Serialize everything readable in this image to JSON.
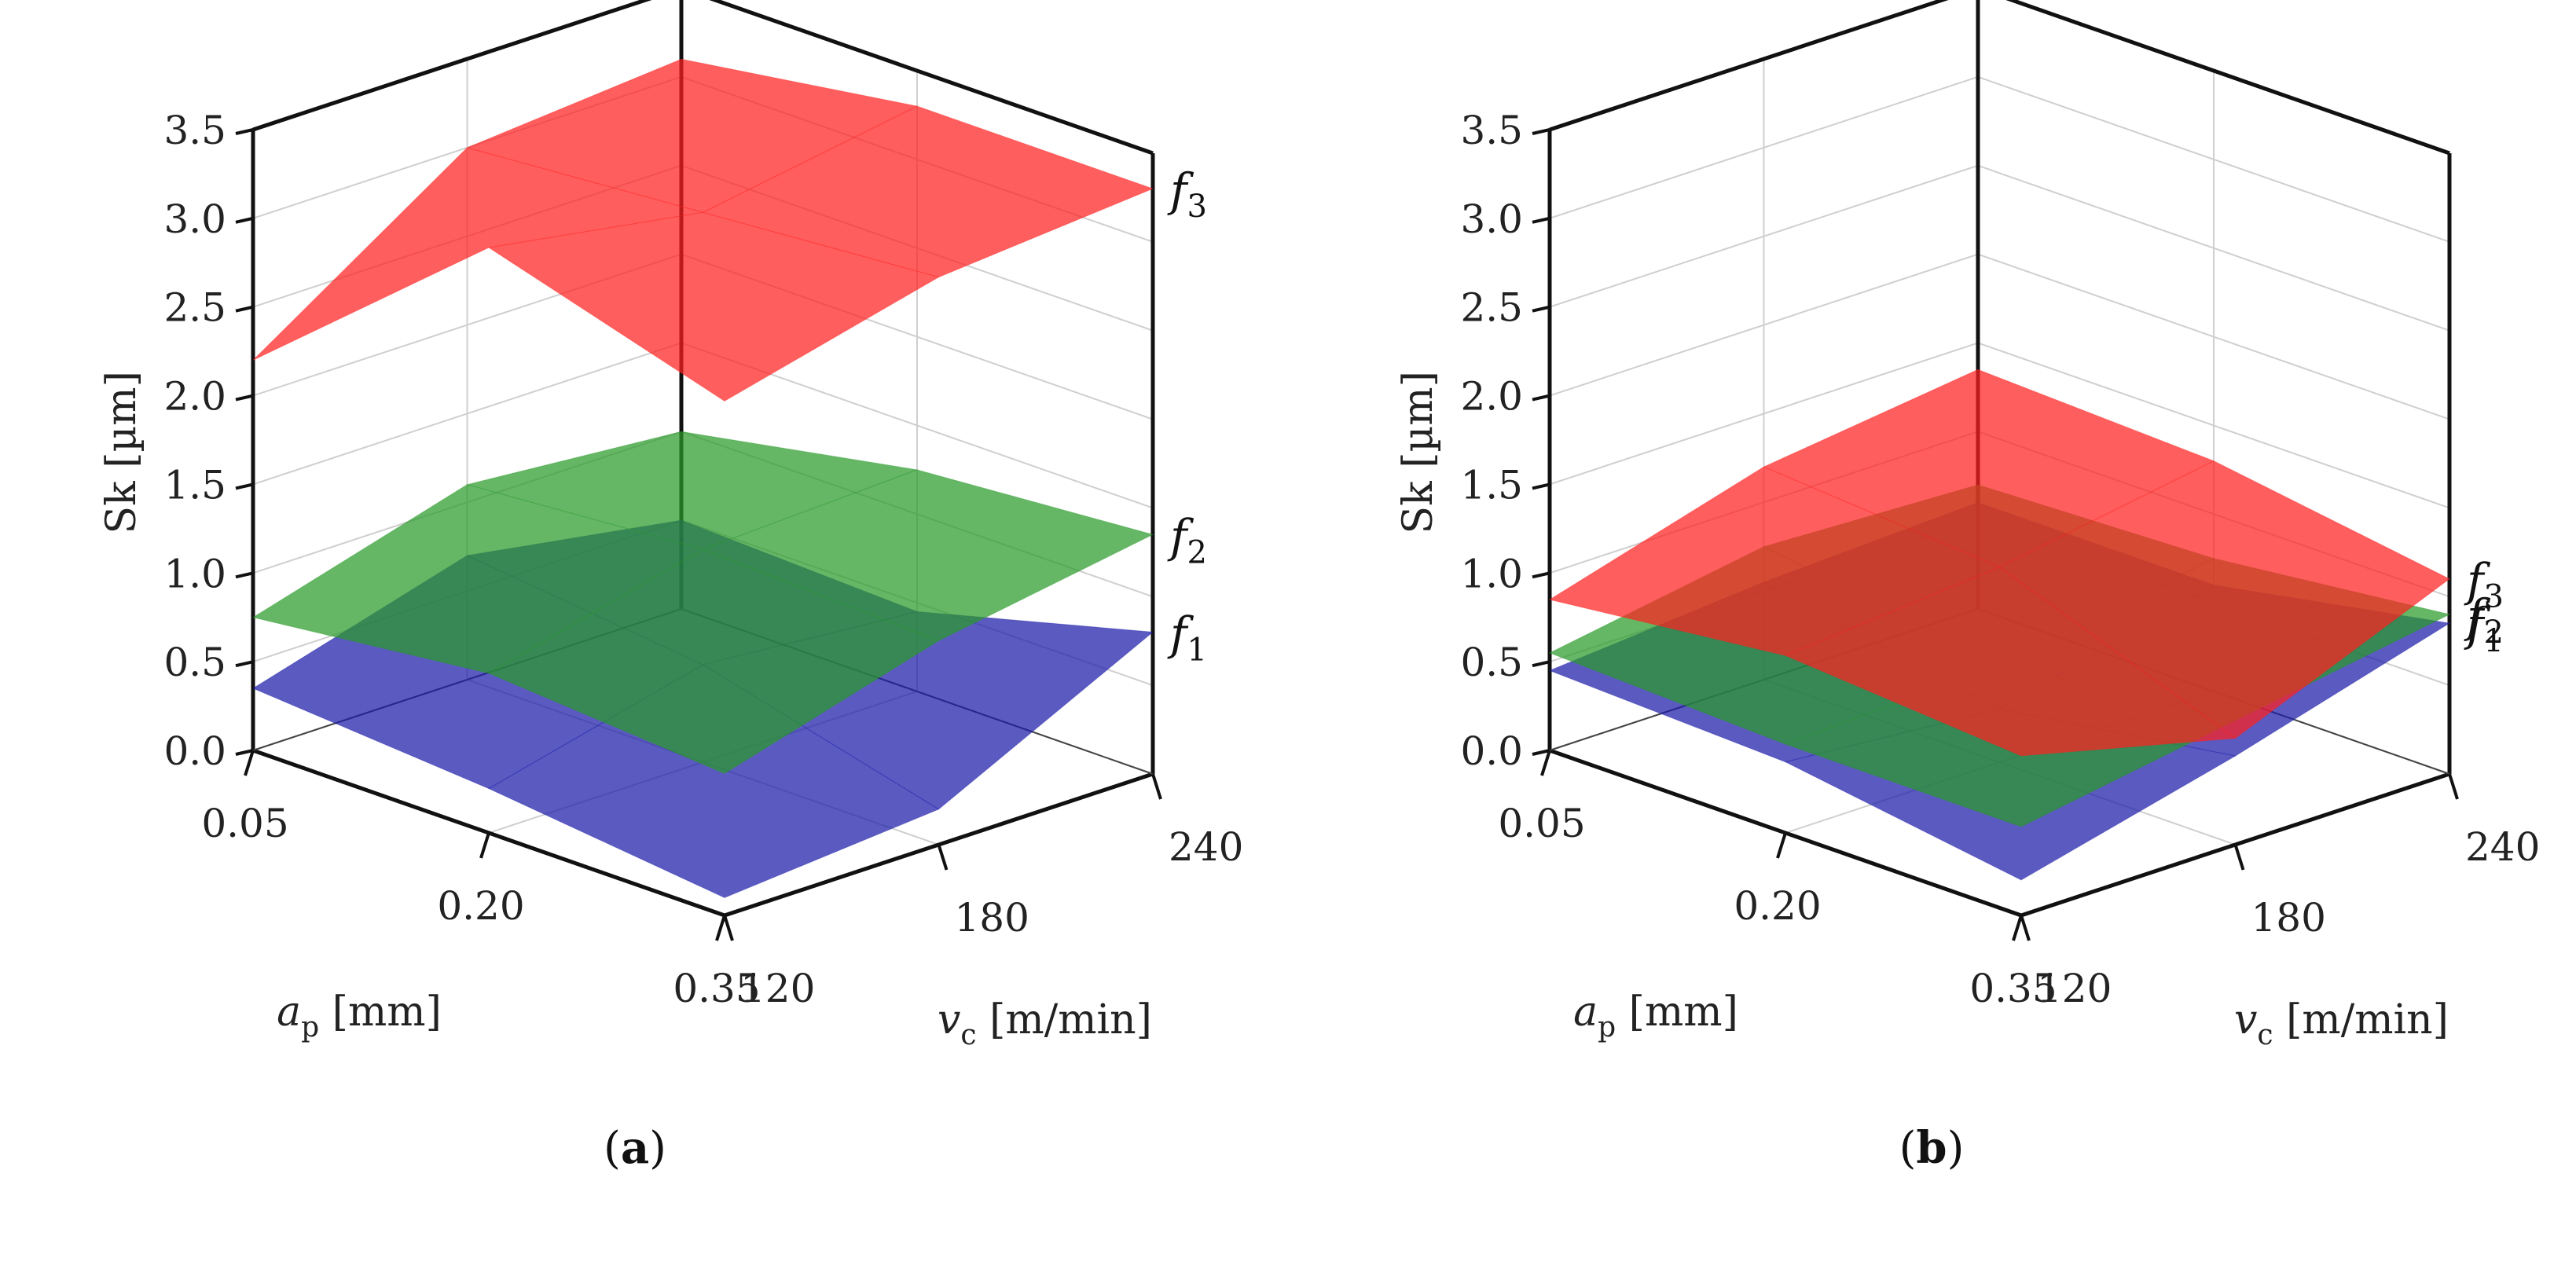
{
  "chart_data": [
    {
      "type": "surface3d",
      "panel_label": "a",
      "zlabel": "Sk [µm]",
      "zlim": [
        0,
        3.5
      ],
      "z_ticks": [
        "0.0",
        "0.5",
        "1.0",
        "1.5",
        "2.0",
        "2.5",
        "3.0",
        "3.5"
      ],
      "x": {
        "label": "a",
        "label_sub": "p",
        "unit": "[mm]",
        "values": [
          0.05,
          0.2,
          0.35
        ],
        "tick_labels": [
          "0.05",
          "0.20",
          "0.35"
        ]
      },
      "y": {
        "label": "v",
        "label_sub": "c",
        "unit": "[m/min]",
        "values": [
          120,
          180,
          240
        ],
        "tick_labels": [
          "120",
          "180",
          "240"
        ]
      },
      "series": [
        {
          "name": "f",
          "sub": "1",
          "color": "#1a1aa8",
          "z": [
            [
              0.35,
              0.7,
              0.5
            ],
            [
              0.25,
              0.55,
              0.45
            ],
            [
              0.1,
              0.2,
              0.8
            ]
          ]
        },
        {
          "name": "f",
          "sub": "2",
          "color": "#2a9a2a",
          "z": [
            [
              0.75,
              1.1,
              1.0
            ],
            [
              0.9,
              1.2,
              1.25
            ],
            [
              0.8,
              1.15,
              1.35
            ]
          ]
        },
        {
          "name": "f",
          "sub": "3",
          "color": "#ff2020",
          "z": [
            [
              2.2,
              3.0,
              3.1
            ],
            [
              3.3,
              3.1,
              3.3
            ],
            [
              2.9,
              3.2,
              3.3
            ]
          ]
        }
      ]
    },
    {
      "type": "surface3d",
      "panel_label": "b",
      "zlabel": "Sk [µm]",
      "zlim": [
        0,
        3.5
      ],
      "z_ticks": [
        "0.0",
        "0.5",
        "1.0",
        "1.5",
        "2.0",
        "2.5",
        "3.0",
        "3.5"
      ],
      "x": {
        "label": "a",
        "label_sub": "p",
        "unit": "[mm]",
        "values": [
          0.05,
          0.2,
          0.35
        ],
        "tick_labels": [
          "0.05",
          "0.20",
          "0.35"
        ]
      },
      "y": {
        "label": "v",
        "label_sub": "c",
        "unit": "[m/min]",
        "values": [
          120,
          180,
          240
        ],
        "tick_labels": [
          "120",
          "180",
          "240"
        ]
      },
      "series": [
        {
          "name": "f",
          "sub": "1",
          "color": "#1a1aa8",
          "z": [
            [
              0.45,
              0.55,
              0.6
            ],
            [
              0.4,
              0.3,
              0.6
            ],
            [
              0.2,
              0.5,
              0.85
            ]
          ]
        },
        {
          "name": "f",
          "sub": "2",
          "color": "#2a9a2a",
          "z": [
            [
              0.55,
              0.75,
              0.7
            ],
            [
              0.5,
              0.55,
              0.75
            ],
            [
              0.5,
              0.7,
              0.9
            ]
          ]
        },
        {
          "name": "f",
          "sub": "3",
          "color": "#ff2020",
          "z": [
            [
              0.85,
              1.2,
              1.35
            ],
            [
              1.0,
              1.1,
              1.3
            ],
            [
              0.9,
              0.6,
              1.1
            ]
          ]
        }
      ]
    }
  ]
}
